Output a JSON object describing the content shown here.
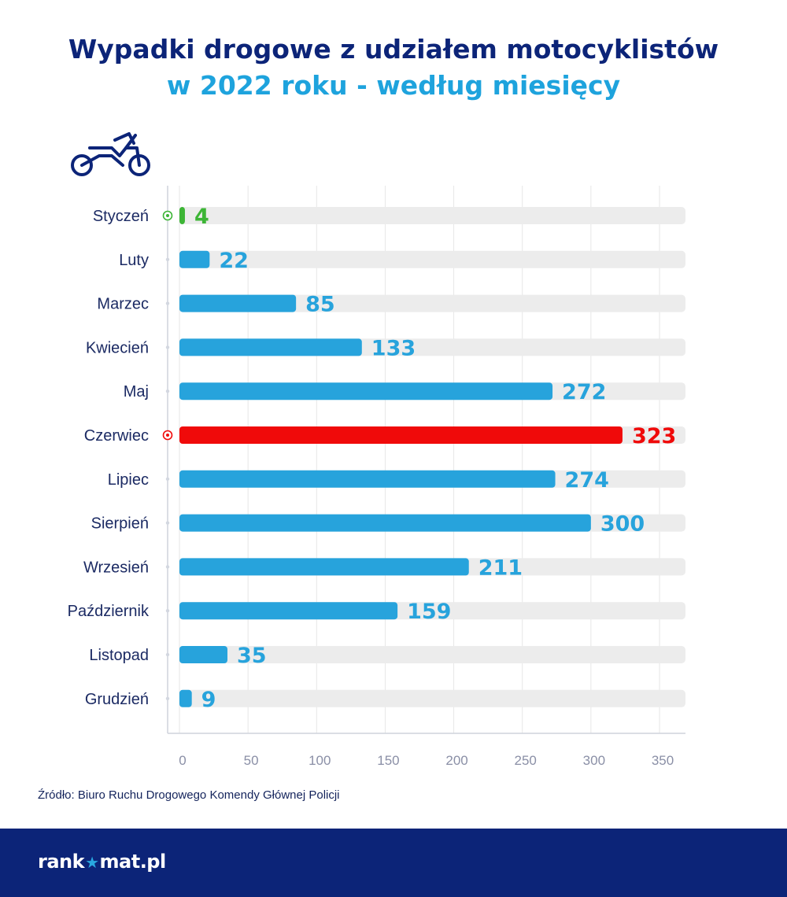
{
  "title": {
    "line1": "Wypadki drogowe z udziałem motocyklistów",
    "line2": "w 2022 roku - według miesięcy"
  },
  "icons": {
    "header": "motorcycle-icon",
    "marker": "target-dot-icon",
    "logo_star": "star-icon"
  },
  "colors": {
    "title_dark": "#0c2478",
    "title_light": "#1ea3dd",
    "bar": "#27a3dc",
    "min": "#3db536",
    "max": "#f00a0a",
    "track": "#ececec",
    "footer": "#0c2478"
  },
  "chart_data": {
    "type": "bar",
    "orientation": "horizontal",
    "categories": [
      "Styczeń",
      "Luty",
      "Marzec",
      "Kwiecień",
      "Maj",
      "Czerwiec",
      "Lipiec",
      "Sierpień",
      "Wrzesień",
      "Październik",
      "Listopad",
      "Grudzień"
    ],
    "values": [
      4,
      22,
      85,
      133,
      272,
      323,
      274,
      300,
      211,
      159,
      35,
      9
    ],
    "xlim": [
      0,
      350
    ],
    "xticks": [
      0,
      50,
      100,
      150,
      200,
      250,
      300,
      350
    ],
    "grid": true,
    "highlight": {
      "min_index": 0,
      "max_index": 5
    }
  },
  "source": "Źródło: Biuro Ruchu Drogowego Komendy Głównej Policji",
  "footer": {
    "logo_left": "rank",
    "logo_star": "★",
    "logo_right": "mat.pl"
  }
}
